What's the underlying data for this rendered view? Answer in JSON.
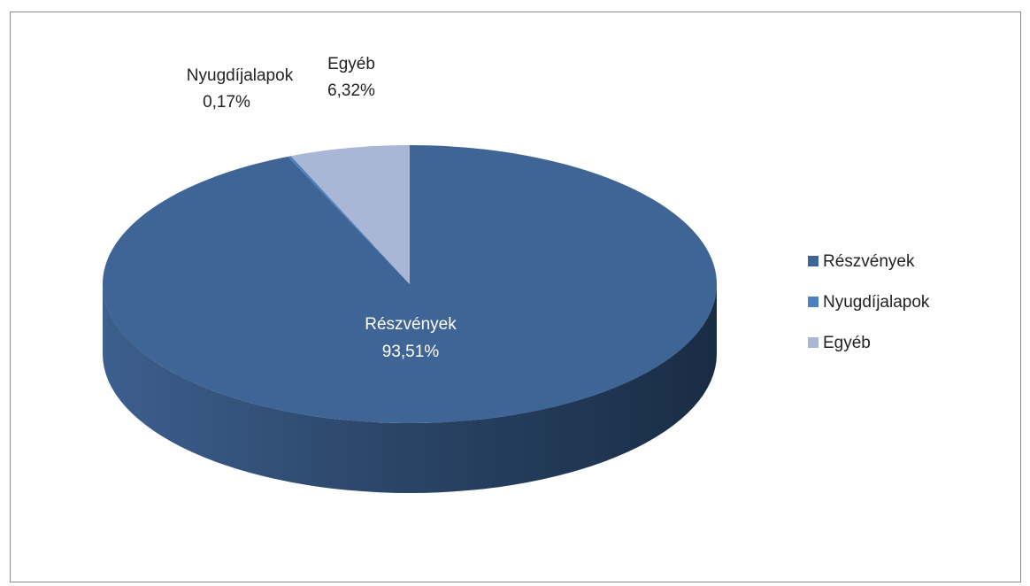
{
  "chart_data": {
    "type": "pie",
    "style": "3d",
    "categories": [
      "Részvények",
      "Nyugdíjalapok",
      "Egyéb"
    ],
    "values": [
      93.51,
      0.17,
      6.32
    ],
    "value_labels": [
      "93,51%",
      "0,17%",
      "6,32%"
    ],
    "colors": [
      "#3f6596",
      "#4e7fc0",
      "#a9b6d5"
    ],
    "legend": {
      "position": "right",
      "entries": [
        "Részvények",
        "Nyugdíjalapok",
        "Egyéb"
      ]
    }
  }
}
